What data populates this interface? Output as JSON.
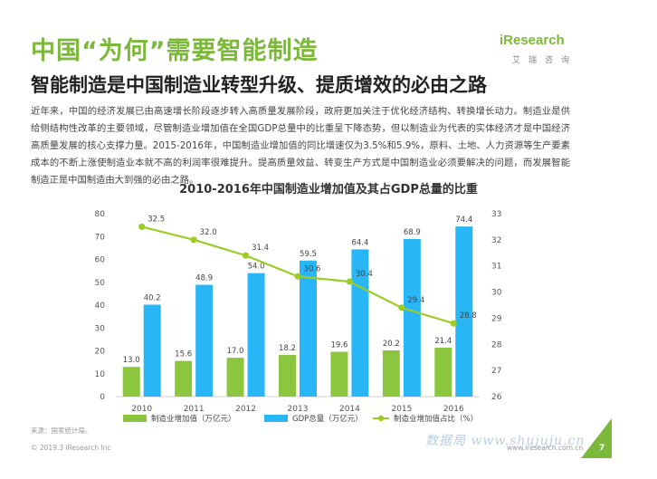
{
  "header": {
    "title": "中国“为何”需要智能制造",
    "subtitle": "智能制造是中国制造业转型升级、提质增效的必由之路"
  },
  "logo": {
    "text": "iResearch",
    "cn": "艾瑞咨询"
  },
  "body_text": "近年来，中国的经济发展已由高速增长阶段逐步转入高质量发展阶段，政府更加关注于优化经济结构、转换增长动力。制造业是供给侧结构性改革的主要领域，尽管制造业增加值在全国GDP总量中的比重呈下降态势，但以制造业为代表的实体经济才是中国经济高质量发展的核心支撑力量。2015-2016年，中国制造业增加值的同比增速仅为3.5%和5.9%，原料、土地、人力资源等生产要素成本的不断上涨使制造业本就不高的利润率很难提升。提高质量效益、转变生产方式是中国制造业必须要解决的问题，而发展智能制造正是中国制造由大到强的必由之路。",
  "chart_data": {
    "type": "bar",
    "title": "2010-2016年中国制造业增加值及其占GDP总量的比重",
    "categories": [
      "2010",
      "2011",
      "2012",
      "2013",
      "2014",
      "2015",
      "2016"
    ],
    "series": [
      {
        "name": "制造业增加值（万亿元）",
        "type": "bar",
        "axis": "left",
        "color": "#8cc63f",
        "values": [
          13.0,
          15.6,
          17.0,
          18.2,
          19.6,
          20.2,
          21.4
        ]
      },
      {
        "name": "GDP总量（万亿元）",
        "type": "bar",
        "axis": "left",
        "color": "#29b6f6",
        "values": [
          40.2,
          48.9,
          54.0,
          59.5,
          64.4,
          68.9,
          74.4
        ]
      },
      {
        "name": "制造业增加值占比（%）",
        "type": "line",
        "axis": "right",
        "color": "#9ccc28",
        "values": [
          32.5,
          32.0,
          31.4,
          30.6,
          30.4,
          29.4,
          28.8
        ]
      }
    ],
    "ylim_left": [
      0,
      80
    ],
    "yticks_left": [
      0,
      10,
      20,
      30,
      40,
      50,
      60,
      70,
      80
    ],
    "ylim_right": [
      26,
      33
    ],
    "yticks_right": [
      26,
      27,
      28,
      29,
      30,
      31,
      32,
      33
    ],
    "grid": false,
    "legend": "bottom"
  },
  "footer": {
    "source": "来源：国家统计局。",
    "copyright": "© 2019.3 iResearch Inc",
    "website": "www.iresearch.com.cn",
    "watermark": "数据局 www.shujuju.cn",
    "page": "7"
  }
}
